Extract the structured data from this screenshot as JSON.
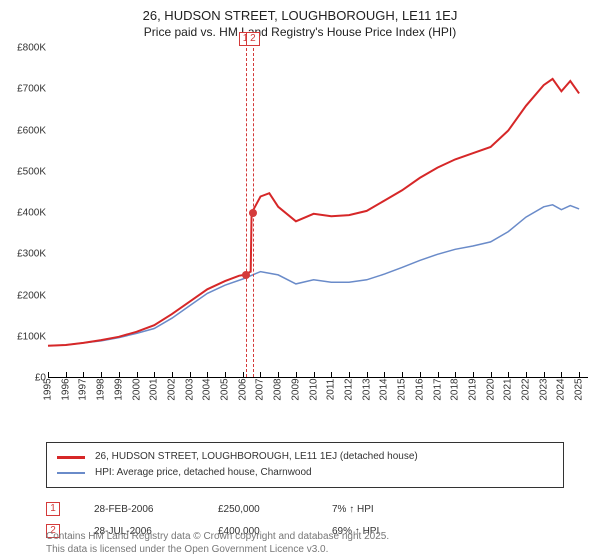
{
  "title": "26, HUDSON STREET, LOUGHBOROUGH, LE11 1EJ",
  "subtitle": "Price paid vs. HM Land Registry's House Price Index (HPI)",
  "chart": {
    "type": "line",
    "xlim": [
      1995,
      2025.5
    ],
    "ylim": [
      0,
      800000
    ],
    "ytick_step": 100000,
    "yticks": [
      "£0",
      "£100K",
      "£200K",
      "£300K",
      "£400K",
      "£500K",
      "£600K",
      "£700K",
      "£800K"
    ],
    "xticks": [
      1995,
      1996,
      1997,
      1998,
      1999,
      2000,
      2001,
      2002,
      2003,
      2004,
      2005,
      2006,
      2007,
      2008,
      2009,
      2010,
      2011,
      2012,
      2013,
      2014,
      2015,
      2016,
      2017,
      2018,
      2019,
      2020,
      2021,
      2022,
      2023,
      2024,
      2025
    ],
    "background_color": "#ffffff",
    "series": [
      {
        "name": "price_paid",
        "label": "26, HUDSON STREET, LOUGHBOROUGH, LE11 1EJ (detached house)",
        "color": "#d62728",
        "width": 2,
        "data": [
          [
            1995,
            78000
          ],
          [
            1996,
            80000
          ],
          [
            1997,
            85000
          ],
          [
            1998,
            92000
          ],
          [
            1999,
            100000
          ],
          [
            2000,
            112000
          ],
          [
            2001,
            128000
          ],
          [
            2002,
            155000
          ],
          [
            2003,
            185000
          ],
          [
            2004,
            215000
          ],
          [
            2005,
            235000
          ],
          [
            2005.8,
            248000
          ],
          [
            2006.08,
            250000
          ],
          [
            2006.45,
            258000
          ],
          [
            2006.5,
            400000
          ],
          [
            2007,
            440000
          ],
          [
            2007.5,
            448000
          ],
          [
            2008,
            415000
          ],
          [
            2009,
            380000
          ],
          [
            2010,
            398000
          ],
          [
            2011,
            392000
          ],
          [
            2012,
            395000
          ],
          [
            2013,
            405000
          ],
          [
            2014,
            430000
          ],
          [
            2015,
            455000
          ],
          [
            2016,
            485000
          ],
          [
            2017,
            510000
          ],
          [
            2018,
            530000
          ],
          [
            2019,
            545000
          ],
          [
            2020,
            560000
          ],
          [
            2021,
            600000
          ],
          [
            2022,
            660000
          ],
          [
            2023,
            710000
          ],
          [
            2023.5,
            725000
          ],
          [
            2024,
            695000
          ],
          [
            2024.5,
            720000
          ],
          [
            2025,
            690000
          ]
        ]
      },
      {
        "name": "hpi",
        "label": "HPI: Average price, detached house, Charnwood",
        "color": "#6a8bc9",
        "width": 1.5,
        "data": [
          [
            1995,
            78000
          ],
          [
            1996,
            80000
          ],
          [
            1997,
            85000
          ],
          [
            1998,
            90000
          ],
          [
            1999,
            98000
          ],
          [
            2000,
            108000
          ],
          [
            2001,
            120000
          ],
          [
            2002,
            145000
          ],
          [
            2003,
            175000
          ],
          [
            2004,
            205000
          ],
          [
            2005,
            225000
          ],
          [
            2006,
            240000
          ],
          [
            2007,
            258000
          ],
          [
            2008,
            250000
          ],
          [
            2009,
            228000
          ],
          [
            2010,
            238000
          ],
          [
            2011,
            232000
          ],
          [
            2012,
            232000
          ],
          [
            2013,
            238000
          ],
          [
            2014,
            252000
          ],
          [
            2015,
            268000
          ],
          [
            2016,
            285000
          ],
          [
            2017,
            300000
          ],
          [
            2018,
            312000
          ],
          [
            2019,
            320000
          ],
          [
            2020,
            330000
          ],
          [
            2021,
            355000
          ],
          [
            2022,
            390000
          ],
          [
            2023,
            415000
          ],
          [
            2023.5,
            420000
          ],
          [
            2024,
            408000
          ],
          [
            2024.5,
            418000
          ],
          [
            2025,
            410000
          ]
        ]
      }
    ],
    "events": [
      {
        "n": "1",
        "date": "28-FEB-2006",
        "x": 2006.16,
        "price": "£250,000",
        "price_v": 250000,
        "pct": "7% ↑ HPI"
      },
      {
        "n": "2",
        "date": "28-JUL-2006",
        "x": 2006.57,
        "price": "£400,000",
        "price_v": 400000,
        "pct": "69% ↑ HPI"
      }
    ]
  },
  "legend": {
    "s1": "26, HUDSON STREET, LOUGHBOROUGH, LE11 1EJ (detached house)",
    "s2": "HPI: Average price, detached house, Charnwood"
  },
  "footer": {
    "l1": "Contains HM Land Registry data © Crown copyright and database right 2025.",
    "l2": "This data is licensed under the Open Government Licence v3.0."
  }
}
